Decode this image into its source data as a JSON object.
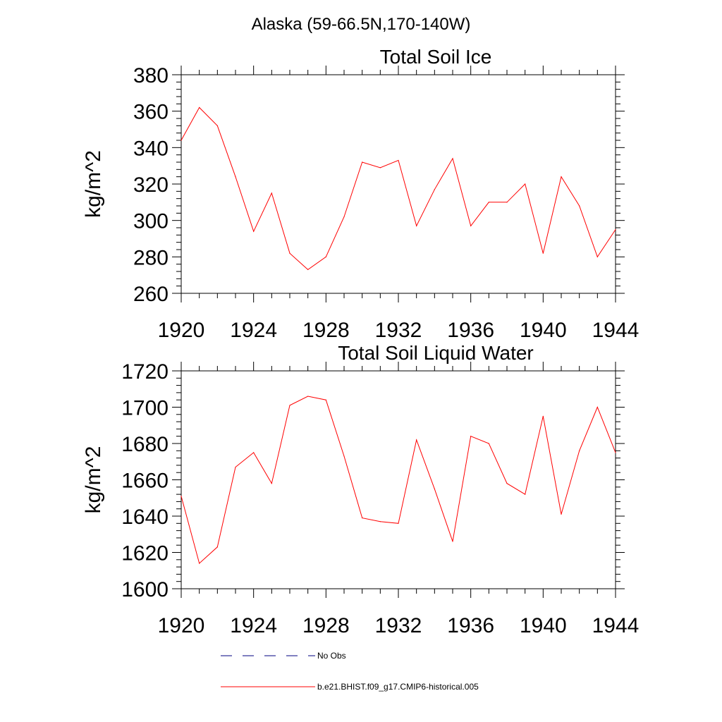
{
  "page_title": "Alaska (59-66.5N,170-140W)",
  "colors": {
    "model_line": "#ff0000",
    "obs_line": "#000080",
    "axis": "#000000"
  },
  "legend": [
    {
      "label": "No Obs",
      "style": "dashed",
      "color": "#000080"
    },
    {
      "label": "b.e21.BHIST.f09_g17.CMIP6-historical.005",
      "style": "solid",
      "color": "#ff0000"
    }
  ],
  "chart_data": [
    {
      "type": "line",
      "title": "Total Soil Ice",
      "ylabel": "kg/m^2",
      "xlabel": "",
      "xlim": [
        1920,
        1944
      ],
      "ylim": [
        260,
        380
      ],
      "xticks": [
        1920,
        1924,
        1928,
        1932,
        1936,
        1940,
        1944
      ],
      "xtick_labels": [
        "1920",
        "1924",
        "1928",
        "1932",
        "1936",
        "1940",
        "1944"
      ],
      "yticks": [
        260,
        280,
        300,
        320,
        340,
        360,
        380
      ],
      "ytick_labels": [
        "260",
        "280",
        "300",
        "320",
        "340",
        "360",
        "380"
      ],
      "x": [
        1920,
        1921,
        1922,
        1923,
        1924,
        1925,
        1926,
        1927,
        1928,
        1929,
        1930,
        1931,
        1932,
        1933,
        1934,
        1935,
        1936,
        1937,
        1938,
        1939,
        1940,
        1941,
        1942,
        1943,
        1944
      ],
      "series": [
        {
          "values": [
            344,
            362,
            352,
            324,
            294,
            315,
            282,
            273,
            280,
            302,
            332,
            329,
            333,
            297,
            317,
            334,
            297,
            310,
            310,
            320,
            282,
            324,
            308,
            280,
            295
          ]
        }
      ]
    },
    {
      "type": "line",
      "title": "Total Soil Liquid Water",
      "ylabel": "kg/m^2",
      "xlabel": "",
      "xlim": [
        1920,
        1944
      ],
      "ylim": [
        1600,
        1720
      ],
      "xticks": [
        1920,
        1924,
        1928,
        1932,
        1936,
        1940,
        1944
      ],
      "xtick_labels": [
        "1920",
        "1924",
        "1928",
        "1932",
        "1936",
        "1940",
        "1944"
      ],
      "yticks": [
        1600,
        1620,
        1640,
        1660,
        1680,
        1700,
        1720
      ],
      "ytick_labels": [
        "1600",
        "1620",
        "1640",
        "1660",
        "1680",
        "1700",
        "1720"
      ],
      "x": [
        1920,
        1921,
        1922,
        1923,
        1924,
        1925,
        1926,
        1927,
        1928,
        1929,
        1930,
        1931,
        1932,
        1933,
        1934,
        1935,
        1936,
        1937,
        1938,
        1939,
        1940,
        1941,
        1942,
        1943,
        1944
      ],
      "series": [
        {
          "values": [
            1651,
            1614,
            1623,
            1667,
            1675,
            1658,
            1701,
            1706,
            1704,
            1673,
            1639,
            1637,
            1636,
            1682,
            1655,
            1626,
            1684,
            1680,
            1658,
            1652,
            1695,
            1641,
            1676,
            1700,
            1675
          ]
        }
      ]
    }
  ]
}
